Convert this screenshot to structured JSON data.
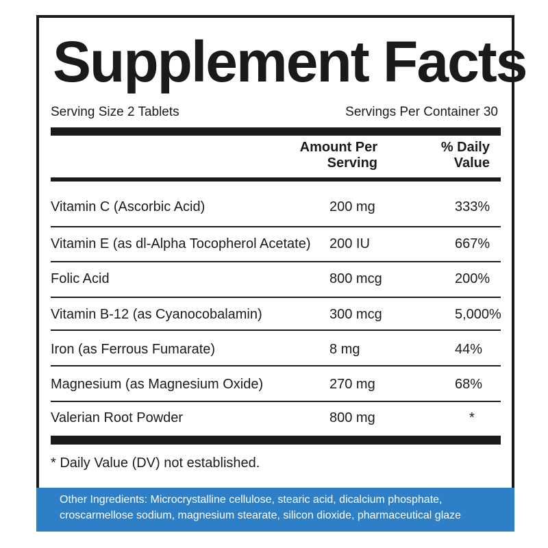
{
  "title": "Supplement Facts",
  "serving_size": "Serving Size 2 Tablets",
  "servings_per_container": "Servings Per Container 30",
  "headers": {
    "amount_line1": "Amount Per",
    "amount_line2": "Serving",
    "dv_line1": "% Daily",
    "dv_line2": "Value"
  },
  "nutrients": [
    {
      "name": "Vitamin C (Ascorbic Acid)",
      "amount": "200 mg",
      "dv": "333%"
    },
    {
      "name": "Vitamin E (as dl-Alpha Tocopherol Acetate)",
      "amount": "200 IU",
      "dv": "667%"
    },
    {
      "name": "Folic Acid",
      "amount": "800 mcg",
      "dv": "200%"
    },
    {
      "name": "Vitamin B-12 (as Cyanocobalamin)",
      "amount": "300 mcg",
      "dv": "5,000%"
    },
    {
      "name": "Iron (as Ferrous Fumarate)",
      "amount": "8 mg",
      "dv": "44%"
    },
    {
      "name": "Magnesium (as Magnesium Oxide)",
      "amount": "270 mg",
      "dv": "68%"
    },
    {
      "name": "Valerian Root Powder",
      "amount": "800 mg",
      "dv": "*"
    }
  ],
  "footnote": "* Daily Value (DV) not established.",
  "other_ingredients": {
    "line1": "Other Ingredients: Microcrystalline cellulose, stearic acid, dicalcium phosphate,",
    "line2": "croscarmellose sodium, magnesium stearate, silicon dioxide,  pharmaceutical glaze"
  },
  "colors": {
    "ink": "#1a1a1a",
    "ingredients_band": "#2d7fc6"
  }
}
